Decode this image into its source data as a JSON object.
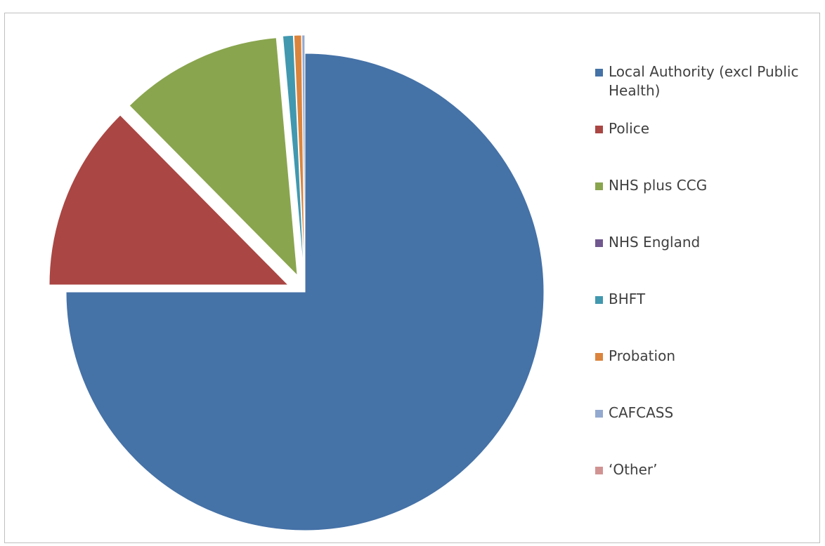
{
  "chart_data": {
    "type": "pie",
    "title": "",
    "legend_position": "right",
    "slices": [
      {
        "label": "Local Authority (excl Public Health)",
        "value": 75.0,
        "color": "#4572a7",
        "exploded": false
      },
      {
        "label": "Police",
        "value": 12.6,
        "color": "#aa4643",
        "exploded": true
      },
      {
        "label": "NHS plus CCG",
        "value": 11.0,
        "color": "#89a54e",
        "exploded": true
      },
      {
        "label": "NHS England",
        "value": 0.0,
        "color": "#71588f",
        "exploded": true
      },
      {
        "label": "BHFT",
        "value": 0.7,
        "color": "#4198af",
        "exploded": true
      },
      {
        "label": "Probation",
        "value": 0.5,
        "color": "#db843d",
        "exploded": true
      },
      {
        "label": "CAFCASS",
        "value": 0.2,
        "color": "#93a9cf",
        "exploded": true
      },
      {
        "label": "‘Other’",
        "value": 0.0,
        "color": "#d19392",
        "exploded": true
      }
    ]
  }
}
